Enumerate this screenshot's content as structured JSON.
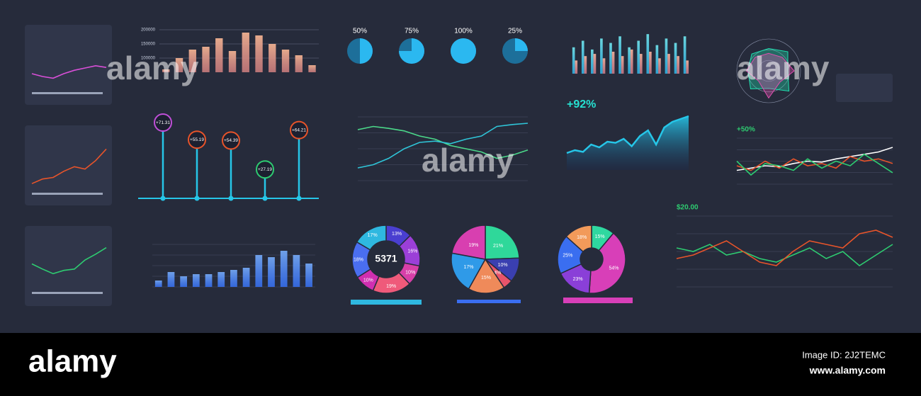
{
  "chart_data": [
    {
      "type": "line",
      "series": [
        {
          "color": "#d94fd8",
          "values": [
            5,
            4.5,
            4.2,
            5,
            5.6,
            6,
            6.4,
            6.1
          ]
        }
      ],
      "ylim": [
        3,
        8
      ]
    },
    {
      "type": "line",
      "series": [
        {
          "color": "#e8542a",
          "values": [
            2,
            2.6,
            2.8,
            3.6,
            4.2,
            3.9,
            5,
            6.5
          ]
        }
      ],
      "ylim": [
        1,
        7
      ]
    },
    {
      "type": "line",
      "series": [
        {
          "color": "#2ecc71",
          "values": [
            4,
            3.2,
            2.5,
            3,
            3.2,
            4.6,
            5.5,
            6.5
          ]
        }
      ],
      "ylim": [
        1,
        7
      ]
    },
    {
      "type": "bar",
      "values": [
        60000,
        100000,
        130000,
        140000,
        170000,
        125000,
        190000,
        180000,
        150000,
        130000,
        110000,
        75000
      ],
      "color": "#ee8d5c",
      "ylim": [
        50000,
        200000
      ],
      "yticks": [
        200000,
        150000,
        100000
      ],
      "grid": true
    },
    {
      "type": "gauge",
      "values": [
        50,
        75,
        100,
        25
      ],
      "value_labels": [
        "50%",
        "75%",
        "100%",
        "25%"
      ],
      "color": "#2bb8f0"
    },
    {
      "type": "bar",
      "series": [
        {
          "color": "#27d3e0",
          "values": [
            60,
            75,
            55,
            80,
            70,
            85,
            60,
            75,
            90,
            65,
            80,
            70,
            85
          ]
        },
        {
          "color": "#f08a6a",
          "values": [
            30,
            40,
            45,
            35,
            50,
            40,
            55,
            45,
            50,
            35,
            45,
            40,
            30
          ]
        }
      ],
      "ylim": [
        0,
        100
      ]
    },
    {
      "type": "radar",
      "series": [
        {
          "color": "#1fe0b0",
          "values": [
            70,
            85,
            60,
            90,
            55,
            80,
            65,
            75
          ]
        },
        {
          "color": "#e14fb0",
          "values": [
            55,
            60,
            80,
            50,
            85,
            45,
            70,
            60
          ]
        }
      ],
      "ylim": [
        0,
        100
      ]
    },
    {
      "type": "lollipop",
      "values": [
        71.31,
        55.19,
        54.39,
        27.19,
        64.21
      ],
      "value_labels": [
        "+71.31",
        "+55.19",
        "+54.39",
        "+27.19",
        "+64.21"
      ],
      "colors": [
        "#c04fd8",
        "#e8542a",
        "#e8542a",
        "#2ecc71",
        "#e8542a"
      ],
      "ylim": [
        0,
        80
      ]
    },
    {
      "type": "line",
      "series": [
        {
          "color": "#4bd98a",
          "values": [
            80,
            85,
            82,
            78,
            70,
            65,
            55,
            50,
            45,
            35,
            40,
            48
          ]
        },
        {
          "color": "#2fc5d8",
          "values": [
            20,
            25,
            35,
            50,
            60,
            62,
            58,
            65,
            70,
            85,
            88,
            90
          ]
        }
      ],
      "ylim": [
        0,
        100
      ],
      "grid": true
    },
    {
      "type": "area",
      "annotation": "+92%",
      "series": [
        {
          "color": "#26c6e8",
          "values": [
            30,
            35,
            32,
            45,
            40,
            50,
            48,
            55,
            42,
            60,
            70,
            45,
            75,
            85,
            90,
            95
          ]
        }
      ],
      "ylim": [
        0,
        100
      ]
    },
    {
      "type": "line",
      "annotation": "+50%",
      "series": [
        {
          "color": "#ffffff",
          "values": [
            30,
            35,
            40,
            38,
            45,
            50,
            48,
            55,
            60,
            65,
            70,
            80
          ]
        },
        {
          "color": "#e8542a",
          "values": [
            40,
            30,
            50,
            35,
            55,
            40,
            45,
            35,
            60,
            50,
            55,
            45
          ]
        },
        {
          "color": "#2ecc71",
          "values": [
            50,
            20,
            45,
            40,
            30,
            55,
            35,
            50,
            40,
            65,
            45,
            25
          ]
        }
      ],
      "ylim": [
        0,
        100
      ],
      "grid": true
    },
    {
      "type": "bar",
      "values": [
        15,
        35,
        25,
        30,
        30,
        35,
        40,
        45,
        75,
        70,
        85,
        75,
        55
      ],
      "color": "#2f7cf0",
      "ylim": [
        0,
        100
      ],
      "grid": true
    },
    {
      "type": "donut",
      "center_label": "5371",
      "values": [
        13,
        16,
        10,
        19,
        10,
        18,
        17
      ],
      "value_labels": [
        "13%",
        "16%",
        "10%",
        "19%",
        "10%",
        "18%",
        "17%"
      ],
      "colors": [
        "#4a3fd0",
        "#9b3fd8",
        "#d83fa8",
        "#ef5a7a",
        "#d02fb0",
        "#4a6ef0",
        "#2fb8e0"
      ]
    },
    {
      "type": "pie",
      "values": [
        21,
        10,
        4,
        15,
        17,
        19
      ],
      "value_labels": [
        "21%",
        "10%",
        "4%",
        "15%",
        "17%",
        "19%"
      ],
      "colors": [
        "#2fd89a",
        "#3a3fb0",
        "#e8546a",
        "#ef8a5a",
        "#2f9ae8",
        "#d83fb0"
      ]
    },
    {
      "type": "donut",
      "values": [
        15,
        54,
        23,
        25,
        18
      ],
      "value_labels": [
        "15%",
        "54%",
        "23%",
        "25%",
        "18%"
      ],
      "colors": [
        "#2fd8a0",
        "#d83fb8",
        "#8a3fd8",
        "#3a6ef0",
        "#f29a5a"
      ]
    },
    {
      "type": "line",
      "annotation": "$20.00",
      "series": [
        {
          "color": "#2ecc71",
          "values": [
            55,
            50,
            60,
            45,
            50,
            40,
            35,
            45,
            55,
            40,
            50,
            30,
            45,
            60
          ]
        },
        {
          "color": "#e8542a",
          "values": [
            40,
            45,
            55,
            65,
            50,
            35,
            30,
            50,
            65,
            60,
            55,
            75,
            80,
            70
          ]
        }
      ],
      "ylim": [
        0,
        100
      ],
      "grid": true
    }
  ],
  "watermark": "alamy",
  "footer": {
    "brand": "alamy",
    "image_id": "Image ID: 2J2TEMC",
    "url": "www.alamy.com"
  }
}
